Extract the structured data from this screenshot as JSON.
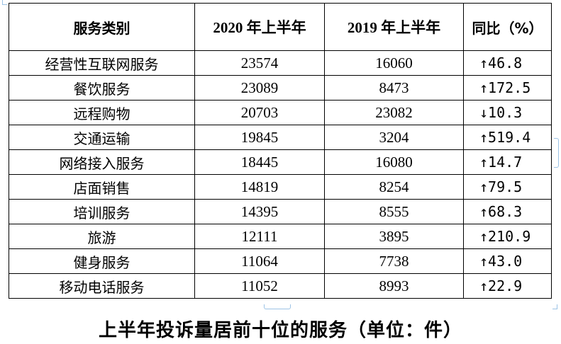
{
  "table": {
    "headers": {
      "category": "服务类别",
      "h2020": "2020 年上半年",
      "h2019": "2019 年上半年",
      "yoy": "同比（%）"
    },
    "rows": [
      {
        "category": "经营性互联网服务",
        "v2020": "23574",
        "v2019": "16060",
        "yoy": "↑46.8"
      },
      {
        "category": "餐饮服务",
        "v2020": "23089",
        "v2019": "8473",
        "yoy": "↑172.5"
      },
      {
        "category": "远程购物",
        "v2020": "20703",
        "v2019": "23082",
        "yoy": "↓10.3"
      },
      {
        "category": "交通运输",
        "v2020": "19845",
        "v2019": "3204",
        "yoy": "↑519.4"
      },
      {
        "category": "网络接入服务",
        "v2020": "18445",
        "v2019": "16080",
        "yoy": "↑14.7"
      },
      {
        "category": "店面销售",
        "v2020": "14819",
        "v2019": "8254",
        "yoy": "↑79.5"
      },
      {
        "category": "培训服务",
        "v2020": "14395",
        "v2019": "8555",
        "yoy": "↑68.3"
      },
      {
        "category": "旅游",
        "v2020": "12111",
        "v2019": "3895",
        "yoy": "↑210.9"
      },
      {
        "category": "健身服务",
        "v2020": "11064",
        "v2019": "7738",
        "yoy": "↑43.0"
      },
      {
        "category": "移动电话服务",
        "v2020": "11052",
        "v2019": "8993",
        "yoy": "↑22.9"
      }
    ]
  },
  "caption": "上半年投诉量居前十位的服务（单位：件）"
}
